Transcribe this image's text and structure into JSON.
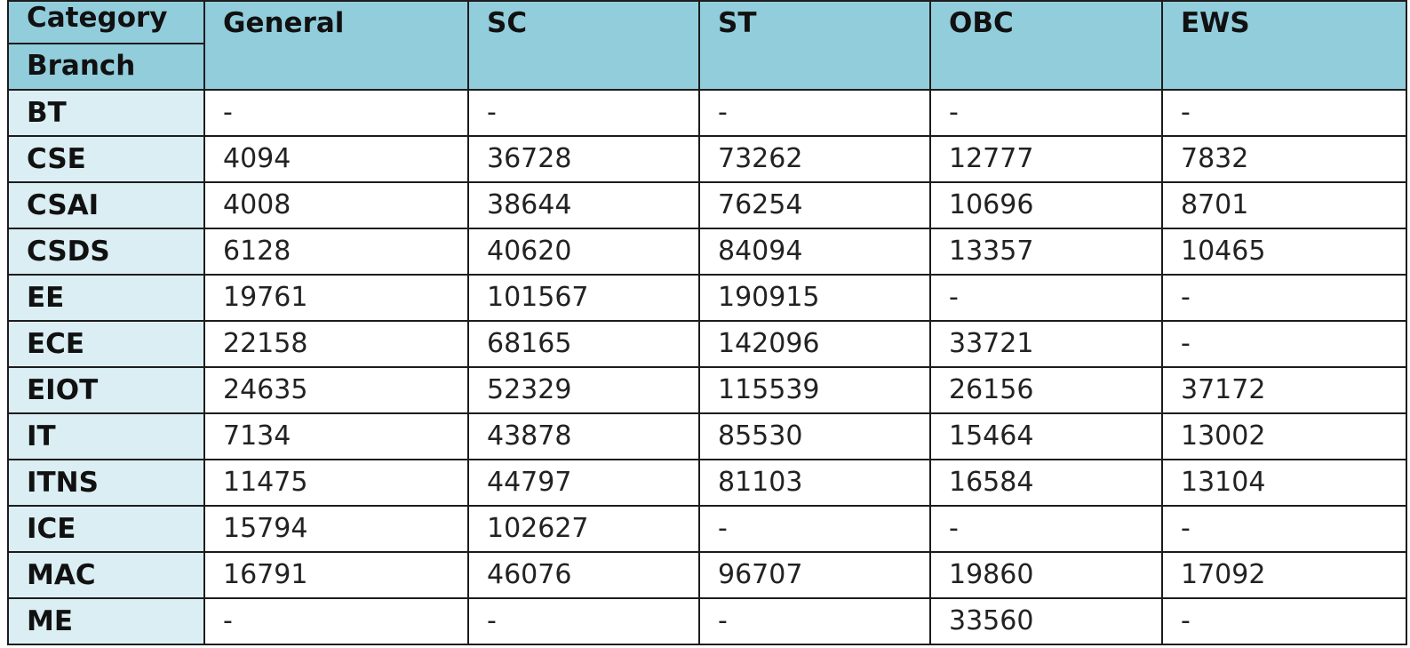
{
  "table": {
    "corner_top": "Category",
    "corner_bottom": "Branch",
    "categories": [
      "General",
      "SC",
      "ST",
      "OBC",
      "EWS"
    ],
    "rows": [
      {
        "branch": "BT",
        "values": [
          "-",
          "-",
          "-",
          "-",
          "-"
        ]
      },
      {
        "branch": "CSE",
        "values": [
          "4094",
          "36728",
          "73262",
          "12777",
          "7832"
        ]
      },
      {
        "branch": "CSAI",
        "values": [
          "4008",
          "38644",
          "76254",
          "10696",
          "8701"
        ]
      },
      {
        "branch": "CSDS",
        "values": [
          "6128",
          "40620",
          "84094",
          "13357",
          "10465"
        ]
      },
      {
        "branch": "EE",
        "values": [
          "19761",
          "101567",
          "190915",
          "-",
          "-"
        ]
      },
      {
        "branch": "ECE",
        "values": [
          "22158",
          "68165",
          "142096",
          "33721",
          "-"
        ]
      },
      {
        "branch": "EIOT",
        "values": [
          "24635",
          "52329",
          "115539",
          "26156",
          "37172"
        ]
      },
      {
        "branch": "IT",
        "values": [
          "7134",
          "43878",
          "85530",
          "15464",
          "13002"
        ]
      },
      {
        "branch": "ITNS",
        "values": [
          "11475",
          "44797",
          "81103",
          "16584",
          "13104"
        ]
      },
      {
        "branch": "ICE",
        "values": [
          "15794",
          "102627",
          "-",
          "-",
          "-"
        ]
      },
      {
        "branch": "MAC",
        "values": [
          "16791",
          "46076",
          "96707",
          "19860",
          "17092"
        ]
      },
      {
        "branch": "ME",
        "values": [
          "-",
          "-",
          "-",
          "33560",
          "-"
        ]
      }
    ]
  },
  "colors": {
    "header_bg": "#92cddc",
    "row_header_bg": "#daeef3",
    "border": "#1c1c1c"
  }
}
